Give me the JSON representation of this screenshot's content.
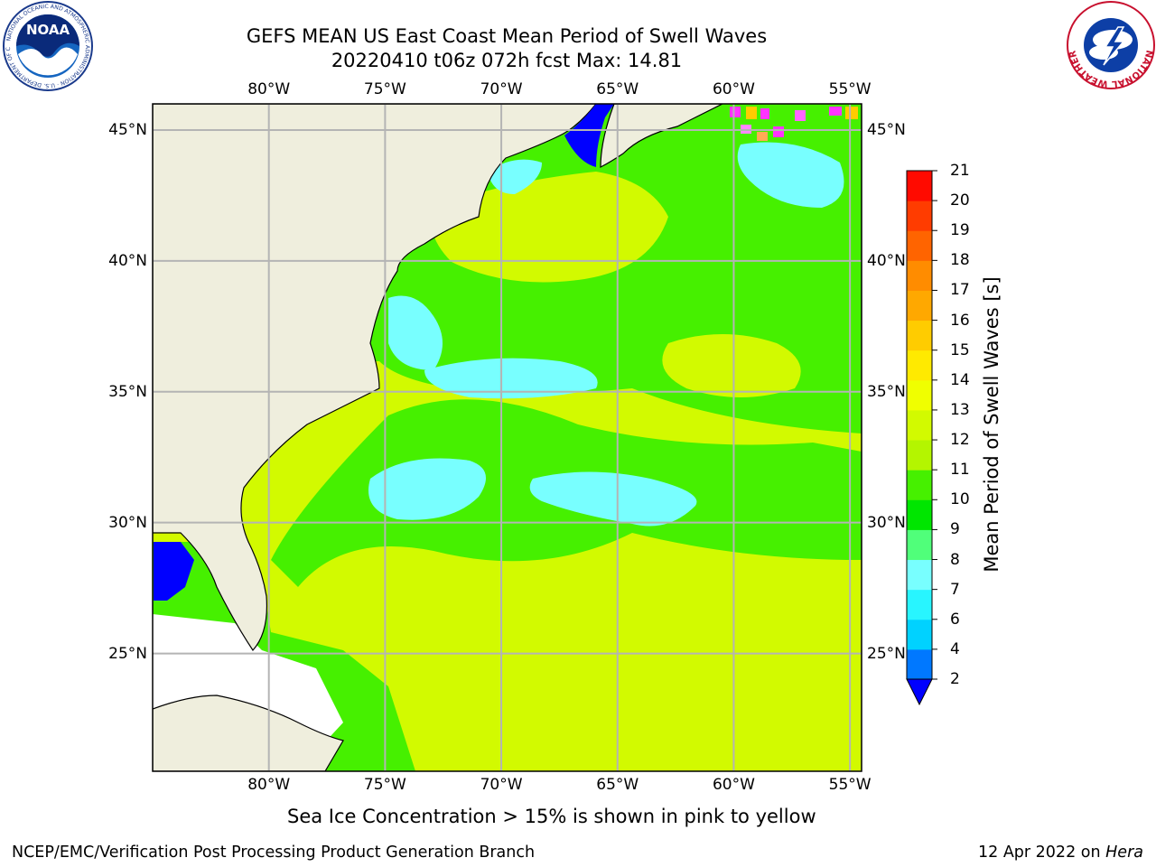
{
  "title": {
    "line1": "GEFS MEAN US East Coast Mean Period of Swell Waves",
    "line2": "20220410 t06z 072h fcst   Max: 14.81"
  },
  "map": {
    "lon_labels": [
      "80°W",
      "75°W",
      "70°W",
      "65°W",
      "60°W",
      "55°W"
    ],
    "lat_labels": [
      "45°N",
      "40°N",
      "35°N",
      "30°N",
      "25°N"
    ],
    "lon_values": [
      -80,
      -75,
      -70,
      -65,
      -60,
      -55
    ],
    "lat_values": [
      45,
      40,
      35,
      30,
      25
    ],
    "lon_range": [
      -85,
      -54.5
    ],
    "lat_range": [
      20.5,
      46
    ],
    "land_color": "#efeedd",
    "grid_color": "#b4b4b4"
  },
  "colorbar": {
    "label": "Mean Period of Swell Waves [s]",
    "ticks": [
      "2",
      "4",
      "6",
      "7",
      "8",
      "9",
      "10",
      "11",
      "12",
      "13",
      "14",
      "15",
      "16",
      "17",
      "18",
      "19",
      "20",
      "21"
    ],
    "under_color": "#0000ff",
    "colors": [
      "#0078ff",
      "#00d2ff",
      "#28f5ff",
      "#78ffff",
      "#50ff7a",
      "#00e600",
      "#46f000",
      "#b4f500",
      "#d2fa00",
      "#f0ff00",
      "#ffea00",
      "#ffcc00",
      "#ffa800",
      "#ff8c00",
      "#ff6400",
      "#ff3c00",
      "#ff0a00"
    ]
  },
  "note": "Sea Ice Concentration > 15% is shown in pink to yellow",
  "footer": {
    "left": "NCEP/EMC/Verification Post Processing Product Generation Branch",
    "date": "12 Apr 2022 on ",
    "machine": "Hera"
  },
  "logos": {
    "noaa_text": "NOAA",
    "noaa_ring": "NATIONAL OCEANIC AND ATMOSPHERIC ADMINISTRATION · U.S. DEPARTMENT OF COMMERCE",
    "nws_ring": "NATIONAL WEATHER SERVICE"
  }
}
